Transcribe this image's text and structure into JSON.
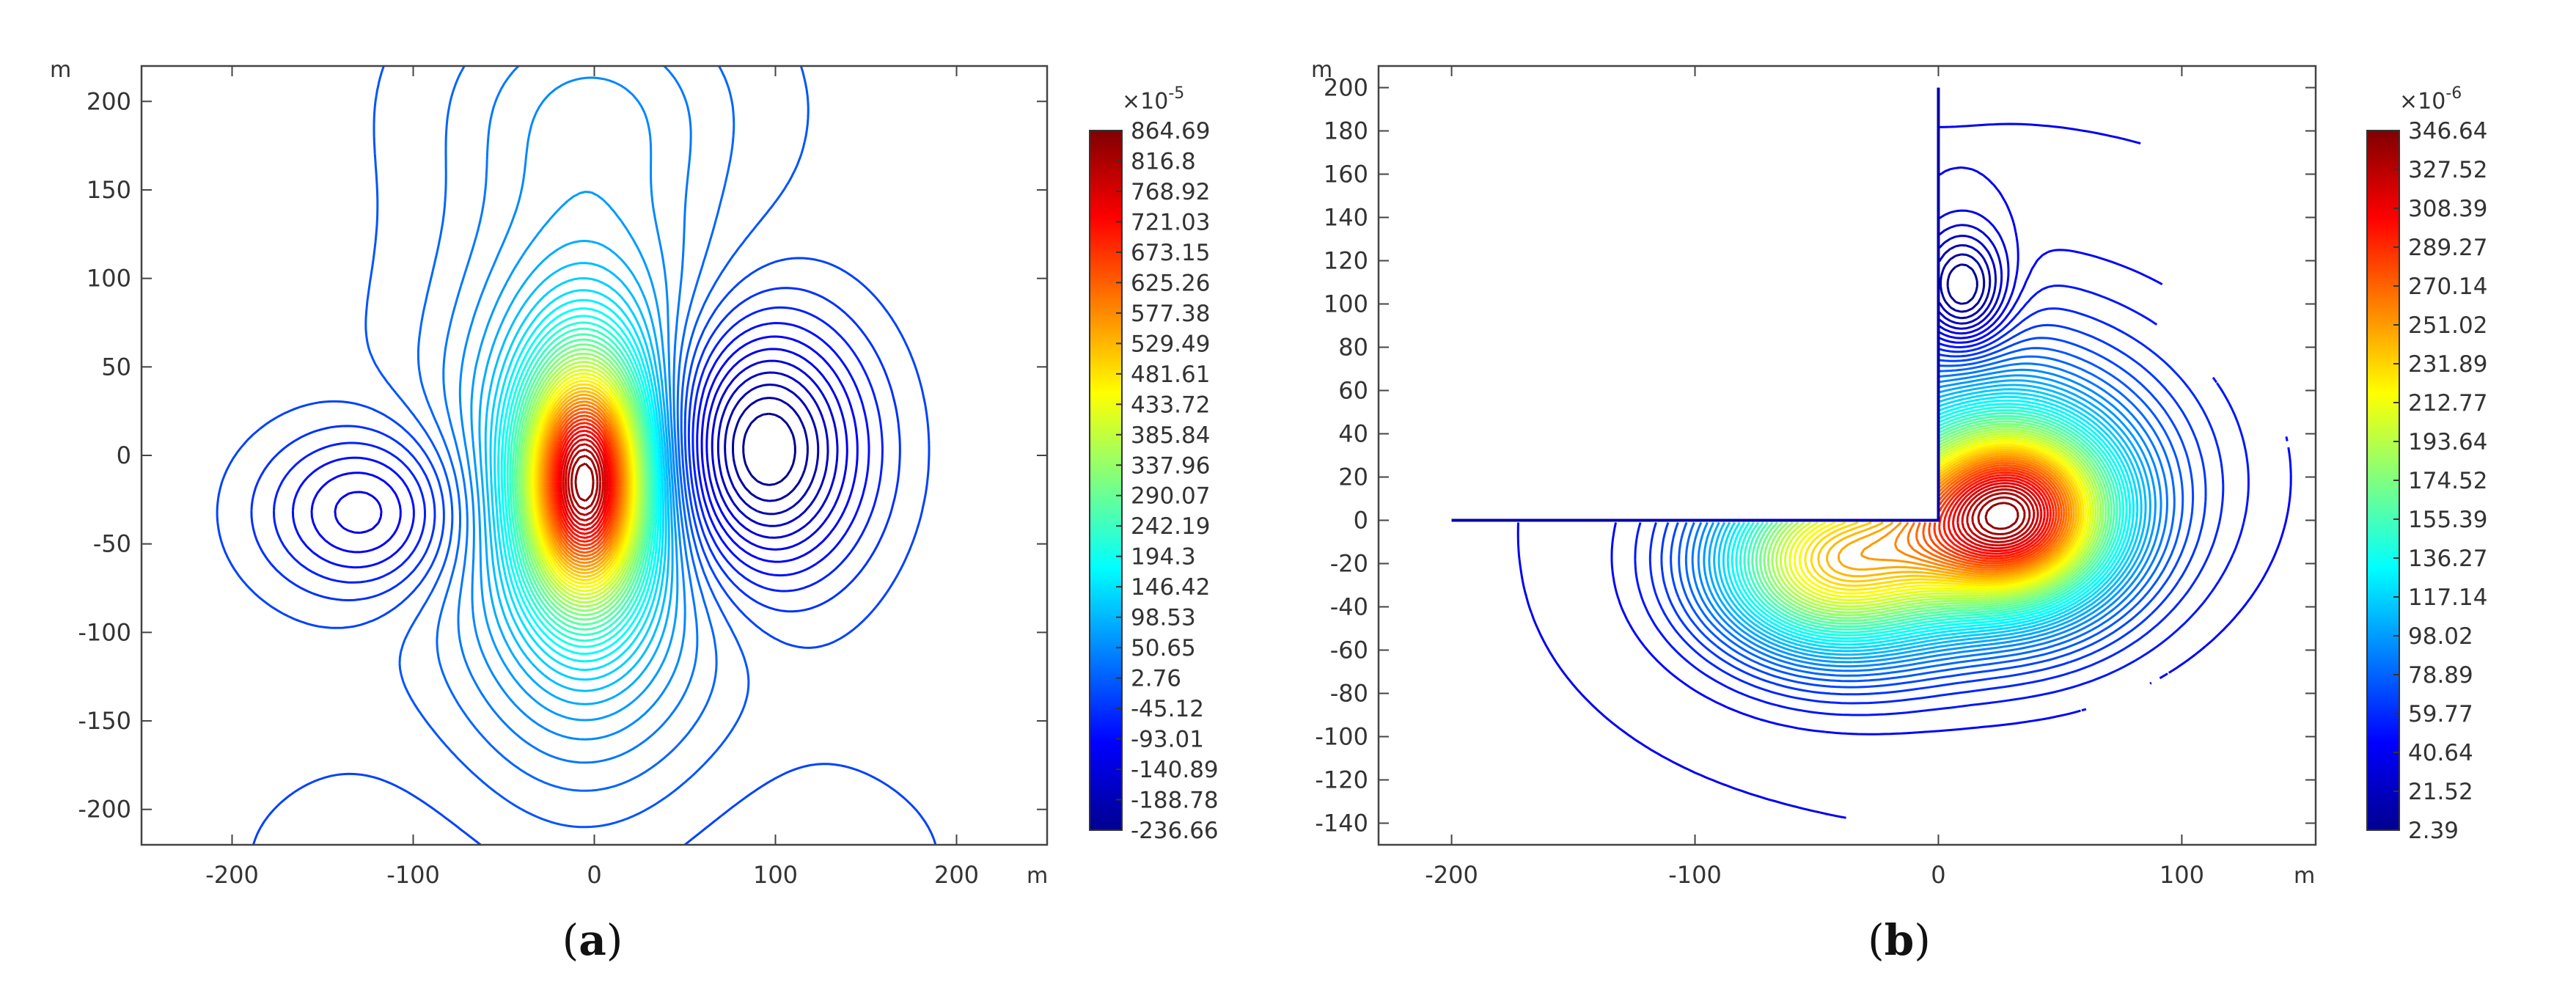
{
  "chart_data": [
    {
      "type": "contour",
      "panel_label": "a",
      "x_unit": "m",
      "y_unit": "m",
      "xlim": [
        -250,
        250
      ],
      "ylim": [
        -220,
        220
      ],
      "x_ticks": [
        -200,
        -100,
        0,
        100,
        200
      ],
      "x_tick_labels": [
        "-200",
        "-100",
        "0",
        "100",
        "200"
      ],
      "y_ticks": [
        200,
        150,
        100,
        50,
        0,
        -50,
        -100,
        -150,
        -200
      ],
      "y_tick_labels": [
        "200",
        "150",
        "100",
        "50",
        "0",
        "-50",
        "-100",
        "-150",
        "-200"
      ],
      "colorbar": {
        "multiplier_base": "×10",
        "multiplier_exp": "-5",
        "min": -236.66,
        "max": 864.69,
        "tick_labels": [
          "864.69",
          "816.8",
          "768.92",
          "721.03",
          "673.15",
          "625.26",
          "577.38",
          "529.49",
          "481.61",
          "433.72",
          "385.84",
          "337.96",
          "290.07",
          "242.19",
          "194.3",
          "146.42",
          "98.53",
          "50.65",
          "2.76",
          "-45.12",
          "-93.01",
          "-140.89",
          "-188.78",
          "-236.66"
        ]
      },
      "features": [
        {
          "kind": "maximum",
          "x": -5,
          "y": -15,
          "value": 864.69
        },
        {
          "kind": "minimum",
          "x": 90,
          "y": 3,
          "value": -236.66
        },
        {
          "kind": "minimum",
          "x": -125,
          "y": -32,
          "value": -188.78
        }
      ]
    },
    {
      "type": "contour",
      "panel_label": "b",
      "x_unit": "m",
      "y_unit": "m",
      "xlim": [
        -230,
        155
      ],
      "ylim": [
        -150,
        210
      ],
      "x_ticks": [
        -200,
        -100,
        0,
        100
      ],
      "x_tick_labels": [
        "-200",
        "-100",
        "0",
        "100"
      ],
      "y_ticks": [
        200,
        180,
        160,
        140,
        120,
        100,
        80,
        60,
        40,
        20,
        0,
        -20,
        -40,
        -60,
        -80,
        -100,
        -120,
        -140
      ],
      "y_tick_labels": [
        "200",
        "180",
        "160",
        "140",
        "120",
        "100",
        "80",
        "60",
        "40",
        "20",
        "0",
        "-20",
        "-40",
        "-60",
        "-80",
        "-100",
        "-120",
        "-140"
      ],
      "colorbar": {
        "multiplier_base": "×10",
        "multiplier_exp": "-6",
        "min": 2.39,
        "max": 346.64,
        "tick_labels": [
          "346.64",
          "327.52",
          "308.39",
          "289.27",
          "270.14",
          "251.02",
          "231.89",
          "212.77",
          "193.64",
          "174.52",
          "155.39",
          "136.27",
          "117.14",
          "98.02",
          "78.89",
          "59.77",
          "40.64",
          "21.52",
          "2.39"
        ]
      },
      "features": [
        {
          "kind": "maximum",
          "x": 30,
          "y": 2,
          "value": 346.64
        },
        {
          "kind": "maximum",
          "x": -43,
          "y": -20,
          "value": 260
        },
        {
          "kind": "minimum",
          "x": 10,
          "y": 105,
          "value": 2.39
        }
      ],
      "boundary": "L-shaped: horizontal line y=0 from x=-200 to 0; vertical line x=0 from y=0 to 200"
    }
  ]
}
